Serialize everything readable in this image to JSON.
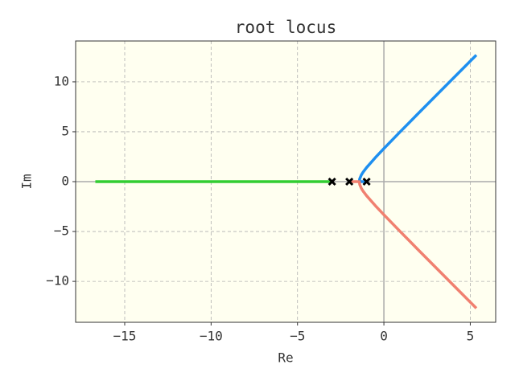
{
  "chart_data": {
    "type": "line",
    "title": "root locus",
    "xlabel": "Re",
    "ylabel": "Im",
    "xlim": [
      -17.84,
      6.47
    ],
    "ylim": [
      -14.1,
      14.1
    ],
    "xticks": [
      {
        "value": -15,
        "label": "−15"
      },
      {
        "value": -10,
        "label": "−10"
      },
      {
        "value": -5,
        "label": "−5"
      },
      0,
      5
    ],
    "yticks": [
      {
        "value": -10,
        "label": "−10"
      },
      {
        "value": -5,
        "label": "−5"
      },
      0,
      5,
      10
    ],
    "grid": true,
    "series": [
      {
        "color": "#1e8ff0",
        "x": [
          -1,
          -1.4226,
          -1.4,
          -1.3,
          -1.2,
          -1,
          -0.5,
          0,
          1,
          2,
          3,
          4,
          5.35
        ],
        "values": [
          0,
          0,
          0.283,
          0.686,
          0.959,
          1.414,
          2.398,
          3.317,
          5.099,
          6.856,
          8.602,
          10.344,
          12.69
        ]
      },
      {
        "color": "#f08070",
        "x": [
          -2,
          -1.4226,
          -1.4,
          -1.3,
          -1.2,
          -1,
          -0.5,
          0,
          1,
          2,
          3,
          4,
          5.35
        ],
        "values": [
          0,
          0,
          -0.283,
          -0.686,
          -0.959,
          -1.414,
          -2.398,
          -3.317,
          -5.099,
          -6.856,
          -8.602,
          -10.344,
          -12.69
        ]
      },
      {
        "color": "#32cd32",
        "x": [
          -3,
          -16.7
        ],
        "values": [
          0,
          0
        ]
      }
    ],
    "poles": {
      "color": "#000000",
      "x": [
        -1,
        -2,
        -3
      ],
      "values": [
        0,
        0,
        0
      ]
    }
  }
}
